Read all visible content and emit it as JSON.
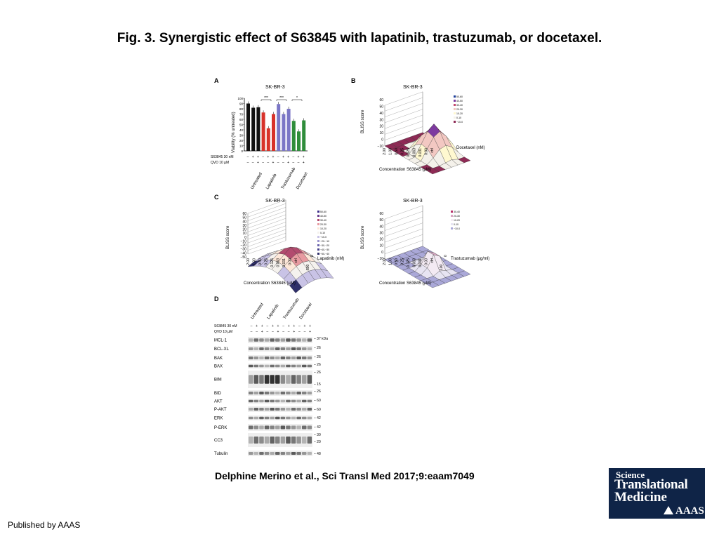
{
  "title": "Fig. 3. Synergistic effect of S63845 with lapatinib, trastuzumab, or docetaxel.",
  "citation": "Delphine Merino et al., Sci Transl Med 2017;9:eaam7049",
  "published": "Published by AAAS",
  "logo": {
    "line1": "Science",
    "line2": "Translational",
    "line3": "Medicine",
    "line4": "AAAS"
  },
  "panelA": {
    "letter": "A",
    "cell_line": "SK-BR-3",
    "ylabel": "Viability (% untreated)",
    "yticks": [
      "0",
      "10",
      "20",
      "30",
      "40",
      "50",
      "60",
      "70",
      "80",
      "90",
      "100"
    ],
    "row1": "S63845 30 nM",
    "row2": "QVD 10 µM",
    "row1_signs": [
      "–",
      "+",
      "+",
      "–",
      "+",
      "+",
      "–",
      "+",
      "+",
      "–",
      "+",
      "+"
    ],
    "row2_signs": [
      "–",
      "–",
      "+",
      "–",
      "–",
      "+",
      "–",
      "–",
      "+",
      "–",
      "–",
      "+"
    ],
    "groups": [
      "Untreated",
      "Lapatinib",
      "Trastuzumab",
      "Docetaxel"
    ],
    "sig": [
      "***",
      "***",
      "*"
    ]
  },
  "panelB": {
    "letter": "B",
    "cell_line": "SK-BR-3",
    "zlabel": "BLISS score",
    "zticks": [
      "60",
      "50",
      "40",
      "30",
      "20",
      "10",
      "0",
      "−10"
    ],
    "conc": [
      "2.00",
      "1.00",
      "0.50",
      "0.25",
      "0.125",
      "0.063",
      "0.031",
      "0.00",
      "ctrl"
    ],
    "xlabel": "Concentration S63845 (µM)",
    "drug": "Docetaxel (nM)",
    "legend": [
      "50-60",
      "40-50",
      "30-40",
      "20-30",
      "10-20",
      "0-10",
      "−10-0"
    ]
  },
  "panelC": {
    "letter": "C",
    "cell_line": "SK-BR-3",
    "zlabel": "BLISS score",
    "zticks": [
      "60",
      "50",
      "40",
      "30",
      "20",
      "10",
      "0",
      "−10",
      "−20",
      "−30",
      "−40",
      "−50"
    ],
    "conc": [
      "2.00",
      "1.00",
      "0.50",
      "0.25",
      "0.125",
      "0.063",
      "0.031",
      "0.00",
      "ctrl"
    ],
    "xlabel": "Concentration S63845 (µM)",
    "drug": "Lapatinib (nM)",
    "drug_ticks": [
      "0",
      "500"
    ],
    "legend": [
      "50-60",
      "40-50",
      "30-40",
      "20-30",
      "10-20",
      "0-10",
      "−10-0",
      "−20-−10",
      "−30-−20",
      "−40-−30",
      "−50-−40"
    ]
  },
  "panelC2": {
    "cell_line": "SK-BR-3",
    "zlabel": "BLISS score",
    "zticks": [
      "60",
      "50",
      "40",
      "30",
      "20",
      "10",
      "0",
      "−10"
    ],
    "conc": [
      "2.00",
      "1.00",
      "0.50",
      "0.25",
      "0.125",
      "0.063",
      "0.031",
      "0.00",
      "ctrl"
    ],
    "xlabel": "Concentration S63845 (µM)",
    "drug": "Trastuzumab (µg/ml)",
    "drug_ticks": [
      "0",
      "100"
    ],
    "legend": [
      "30-40",
      "20-30",
      "10-20",
      "0-10",
      "−10-0"
    ]
  },
  "panelD": {
    "letter": "D",
    "groups": [
      "Untreated",
      "Lapatinib",
      "Trastuzumab",
      "Docetaxel"
    ],
    "row1": "S63845 30 nM",
    "row2": "QVD 10 µM",
    "proteins": [
      "MCL-1",
      "BCL-XL",
      "BAK",
      "BAX",
      "BIM",
      "BID",
      "AKT",
      "P-AKT",
      "ERK",
      "P-ERK",
      "CC3",
      "Tubulin"
    ],
    "markers": [
      "– 37 kDa",
      "– 26",
      "– 26",
      "– 26",
      "– 26",
      "– 15",
      "– 26",
      "– 60",
      "– 60",
      "– 42",
      "– 42",
      "– 30",
      "– 20",
      "– 48"
    ]
  },
  "colors": {
    "untreated": "#111111",
    "lapatinib": "#d8322a",
    "trastuzumab": "#7b76c6",
    "docetaxel": "#2f8d3b",
    "logo_bg": "#0f2447"
  }
}
